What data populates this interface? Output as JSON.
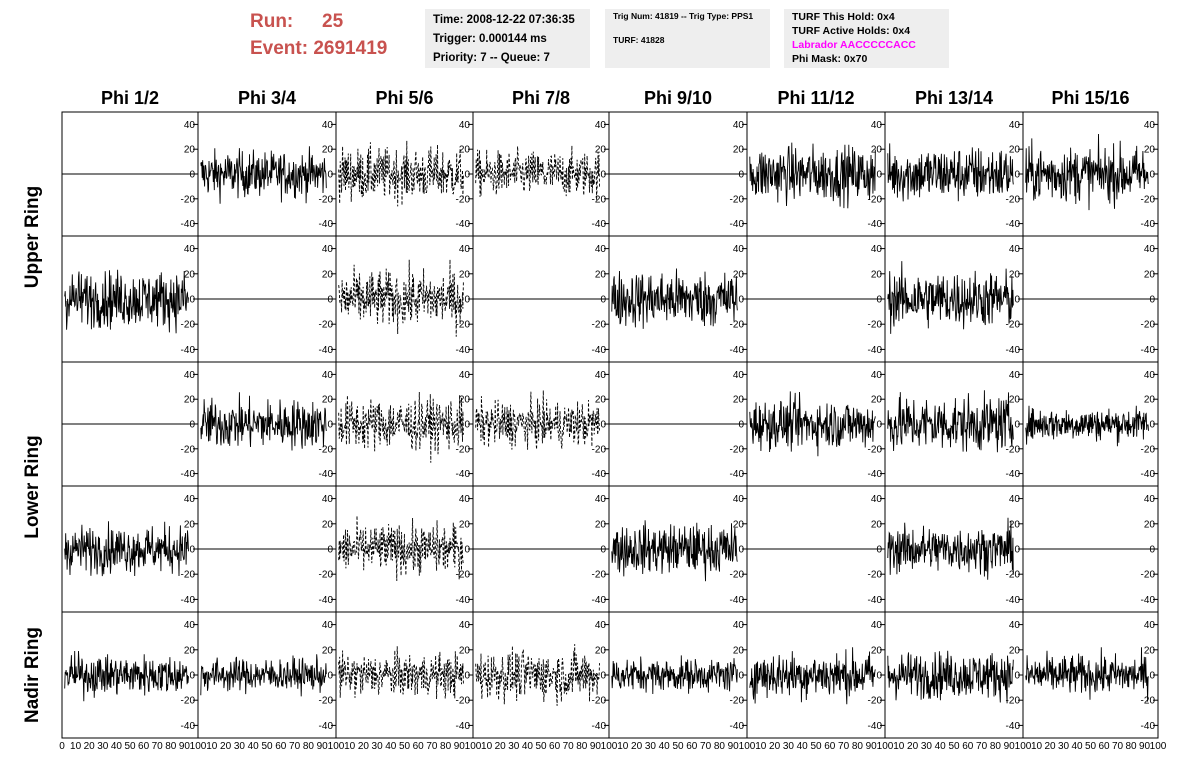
{
  "header": {
    "run_label": "Run:",
    "run_value": "25",
    "event_label": "Event:",
    "event_value": "2691419"
  },
  "info_time": {
    "time": "Time: 2008-12-22 07:36:35",
    "trigger": "Trigger: 0.000144 ms",
    "priority": "Priority: 7 -- Queue: 7"
  },
  "info_trig": {
    "trig": "Trig Num: 41819 -- Trig Type: PPS1",
    "turf": "TURF: 41828"
  },
  "info_turf": {
    "this_hold": "TURF This Hold: 0x4",
    "active_holds": "TURF Active Holds: 0x4",
    "labrador": "Labrador AACCCCCACC",
    "phi_mask": "Phi Mask: 0x70"
  },
  "colors": {
    "header_red": "#c8524f",
    "magenta": "#ff00ff",
    "pane_bg": "#eeeeee",
    "trace": "#000000"
  },
  "chart_data": {
    "type": "line",
    "columns": [
      "Phi 1/2",
      "Phi 3/4",
      "Phi 5/6",
      "Phi 7/8",
      "Phi 9/10",
      "Phi 11/12",
      "Phi 13/14",
      "Phi 15/16"
    ],
    "row_labels": [
      "Upper Ring",
      "Lower Ring",
      "Nadir Ring"
    ],
    "xlim": [
      0,
      100
    ],
    "ylim": [
      -50,
      50
    ],
    "x_ticks": [
      0,
      10,
      20,
      30,
      40,
      50,
      60,
      70,
      80,
      90,
      100
    ],
    "y_ticks": [
      -40,
      -20,
      0,
      20,
      40
    ],
    "rows": [
      {
        "panels": [
          "flat",
          "solid",
          "dashed",
          "dashed",
          "flat",
          "solid",
          "solid",
          "solid"
        ],
        "amplitude": [
          0,
          14,
          16,
          14,
          0,
          17,
          17,
          17
        ]
      },
      {
        "panels": [
          "solid",
          "flat",
          "dashed",
          "flat",
          "solid",
          "flat",
          "solid",
          "flat"
        ],
        "amplitude": [
          17,
          0,
          17,
          0,
          17,
          0,
          17,
          0
        ]
      },
      {
        "panels": [
          "flat",
          "solid",
          "dashed",
          "dashed",
          "flat",
          "solid",
          "solid",
          "solid"
        ],
        "amplitude": [
          0,
          15,
          16,
          14,
          0,
          15,
          17,
          10
        ]
      },
      {
        "panels": [
          "solid",
          "flat",
          "dashed",
          "flat",
          "solid",
          "flat",
          "solid",
          "flat"
        ],
        "amplitude": [
          14,
          0,
          15,
          0,
          15,
          0,
          14,
          0
        ]
      },
      {
        "panels": [
          "solid",
          "solid",
          "dashed",
          "dashed",
          "solid",
          "solid",
          "solid",
          "solid"
        ],
        "amplitude": [
          12,
          10,
          13,
          15,
          10,
          14,
          14,
          12
        ]
      }
    ]
  }
}
